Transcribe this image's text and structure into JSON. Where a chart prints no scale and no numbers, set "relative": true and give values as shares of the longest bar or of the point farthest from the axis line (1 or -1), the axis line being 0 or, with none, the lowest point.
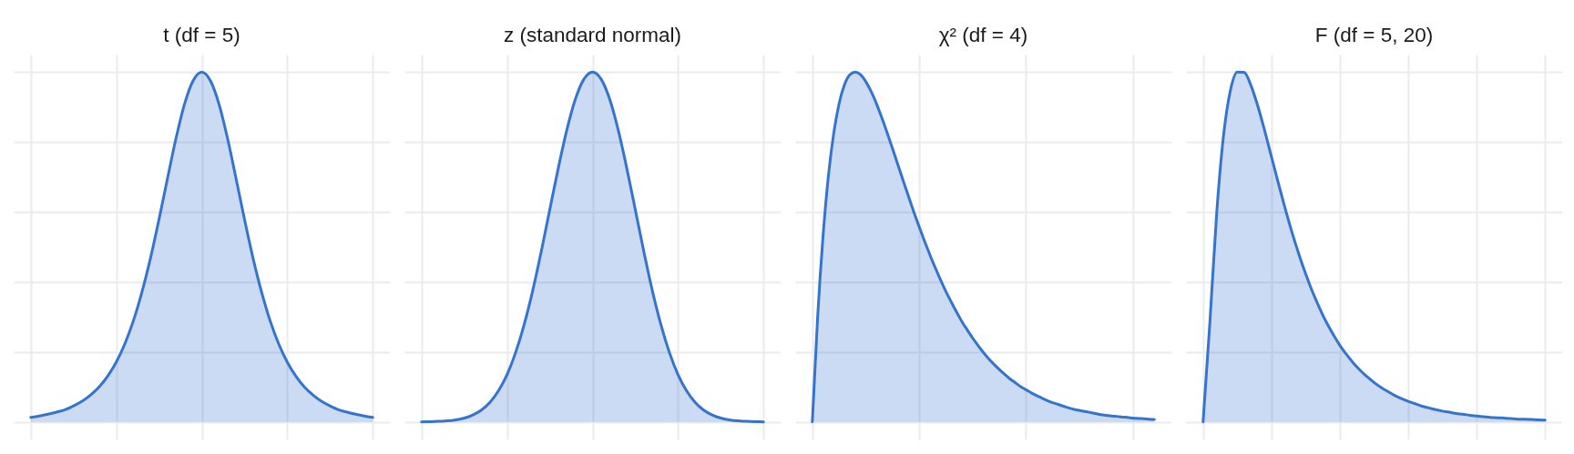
{
  "chart_data": [
    {
      "type": "area",
      "title": "t (df = 5)",
      "relative": true,
      "grid": true,
      "tick_labels": false,
      "color": "#3474cf",
      "categories": [
        null,
        null,
        null,
        null,
        null,
        null,
        null,
        null,
        null,
        null,
        null,
        null,
        null,
        null,
        null,
        null,
        null,
        null,
        null,
        null,
        null,
        null,
        null,
        null,
        null,
        null,
        null,
        null,
        null,
        null,
        null,
        null,
        null,
        null,
        null,
        null,
        null,
        null,
        null,
        null,
        null
      ],
      "values": [
        0.013,
        0.017,
        0.022,
        0.028,
        0.035,
        0.046,
        0.059,
        0.077,
        0.1,
        0.131,
        0.171,
        0.223,
        0.289,
        0.371,
        0.468,
        0.579,
        0.697,
        0.812,
        0.91,
        0.976,
        1,
        0.976,
        0.91,
        0.812,
        0.697,
        0.579,
        0.468,
        0.371,
        0.289,
        0.223,
        0.171,
        0.131,
        0.1,
        0.077,
        0.059,
        0.046,
        0.035,
        0.028,
        0.022,
        0.017,
        0.013
      ]
    },
    {
      "type": "area",
      "title": "z (standard normal)",
      "relative": true,
      "grid": true,
      "tick_labels": false,
      "color": "#3474cf",
      "categories": [
        null,
        null,
        null,
        null,
        null,
        null,
        null,
        null,
        null,
        null,
        null,
        null,
        null,
        null,
        null,
        null,
        null,
        null,
        null,
        null,
        null,
        null,
        null,
        null,
        null,
        null,
        null,
        null,
        null,
        null,
        null,
        null,
        null,
        null,
        null,
        null,
        null,
        null,
        null,
        null,
        null
      ],
      "values": [
        0,
        0.001,
        0.002,
        0.003,
        0.006,
        0.011,
        0.02,
        0.034,
        0.056,
        0.089,
        0.135,
        0.198,
        0.278,
        0.375,
        0.487,
        0.607,
        0.726,
        0.835,
        0.923,
        0.98,
        1,
        0.98,
        0.923,
        0.835,
        0.726,
        0.607,
        0.487,
        0.375,
        0.278,
        0.198,
        0.135,
        0.089,
        0.056,
        0.034,
        0.02,
        0.011,
        0.006,
        0.003,
        0.002,
        0.001,
        0
      ]
    },
    {
      "type": "area",
      "title": "χ² (df = 4)",
      "relative": true,
      "grid": true,
      "tick_labels": false,
      "color": "#3474cf",
      "categories": [
        null,
        null,
        null,
        null,
        null,
        null,
        null,
        null,
        null,
        null,
        null,
        null,
        null,
        null,
        null,
        null,
        null,
        null,
        null,
        null,
        null,
        null,
        null,
        null,
        null,
        null,
        null,
        null,
        null,
        null,
        null,
        null,
        null,
        null,
        null,
        null,
        null,
        null,
        null,
        null,
        null,
        null,
        null,
        null,
        null,
        null,
        null,
        null,
        null,
        null,
        null,
        null,
        null,
        null,
        null,
        null,
        null,
        null,
        null,
        null,
        null,
        null,
        null,
        null,
        null
      ],
      "values": [
        0,
        0.3,
        0.529,
        0.701,
        0.824,
        0.909,
        0.963,
        0.992,
        1,
        0.993,
        0.973,
        0.945,
        0.91,
        0.87,
        0.827,
        0.782,
        0.736,
        0.69,
        0.645,
        0.6,
        0.558,
        0.517,
        0.478,
        0.441,
        0.406,
        0.373,
        0.343,
        0.314,
        0.287,
        0.263,
        0.24,
        0.219,
        0.199,
        0.181,
        0.165,
        0.15,
        0.136,
        0.123,
        0.112,
        0.101,
        0.092,
        0.083,
        0.075,
        0.068,
        0.061,
        0.055,
        0.05,
        0.045,
        0.04,
        0.036,
        0.033,
        0.03,
        0.027,
        0.024,
        0.021,
        0.019,
        0.017,
        0.016,
        0.014,
        0.013,
        0.011,
        0.01,
        0.009,
        0.008,
        0.007
      ]
    },
    {
      "type": "area",
      "title": "F (df = 5, 20)",
      "relative": true,
      "grid": true,
      "tick_labels": false,
      "color": "#3474cf",
      "categories": [
        null,
        null,
        null,
        null,
        null,
        null,
        null,
        null,
        null,
        null,
        null,
        null,
        null,
        null,
        null,
        null,
        null,
        null,
        null,
        null,
        null,
        null,
        null,
        null,
        null,
        null,
        null,
        null,
        null,
        null,
        null,
        null,
        null,
        null,
        null,
        null,
        null,
        null,
        null,
        null,
        null,
        null,
        null,
        null,
        null,
        null,
        null,
        null,
        null,
        null,
        null
      ],
      "values": [
        0,
        0.286,
        0.599,
        0.82,
        0.948,
        1,
        0.999,
        0.962,
        0.903,
        0.833,
        0.758,
        0.683,
        0.61,
        0.542,
        0.48,
        0.423,
        0.372,
        0.327,
        0.286,
        0.251,
        0.219,
        0.192,
        0.168,
        0.147,
        0.129,
        0.113,
        0.099,
        0.087,
        0.076,
        0.067,
        0.059,
        0.052,
        0.045,
        0.04,
        0.035,
        0.031,
        0.028,
        0.024,
        0.022,
        0.019,
        0.017,
        0.015,
        0.013,
        0.012,
        0.011,
        0.01,
        0.008,
        0.008,
        0.007,
        0.006,
        0.005
      ]
    }
  ]
}
